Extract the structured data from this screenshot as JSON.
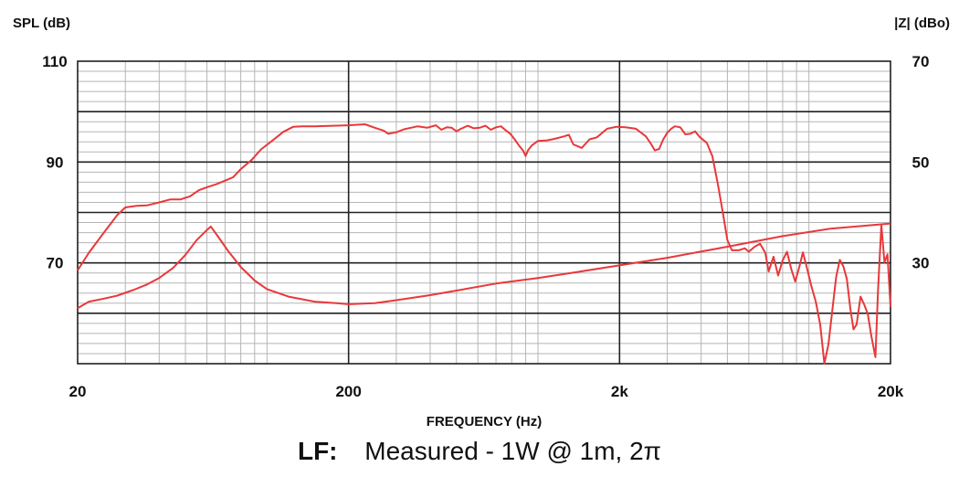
{
  "chart_data": {
    "type": "line",
    "xscale": "log",
    "xlim": [
      20,
      20000
    ],
    "ylim_left": [
      50,
      110
    ],
    "ylim_right": [
      10,
      70
    ],
    "ylabel_left": "SPL (dB)",
    "ylabel_right": "|Z| (dBo)",
    "xlabel": "FREQUENCY (Hz)",
    "caption_label": "LF:",
    "caption_text": "Measured - 1W @ 1m, 2π",
    "grid": true,
    "line_color": "#e8383b",
    "x_ticks": [
      {
        "value": 20,
        "label": "20"
      },
      {
        "value": 200,
        "label": "200"
      },
      {
        "value": 2000,
        "label": "2k"
      },
      {
        "value": 20000,
        "label": "20k"
      }
    ],
    "y_ticks_left": [
      {
        "value": 110,
        "label": "110"
      },
      {
        "value": 90,
        "label": "90"
      },
      {
        "value": 70,
        "label": "70"
      }
    ],
    "y_ticks_right": [
      {
        "value": 70,
        "label": "70"
      },
      {
        "value": 50,
        "label": "50"
      },
      {
        "value": 30,
        "label": "30"
      }
    ],
    "series": [
      {
        "axis": "left",
        "points": [
          [
            20,
            68.5
          ],
          [
            22,
            72
          ],
          [
            25,
            76
          ],
          [
            28,
            79.5
          ],
          [
            30,
            81
          ],
          [
            33,
            81.3
          ],
          [
            36,
            81.4
          ],
          [
            40,
            82
          ],
          [
            44,
            82.6
          ],
          [
            48,
            82.6
          ],
          [
            52,
            83.2
          ],
          [
            56,
            84.4
          ],
          [
            60,
            85
          ],
          [
            65,
            85.6
          ],
          [
            70,
            86.3
          ],
          [
            75,
            87
          ],
          [
            80,
            88.6
          ],
          [
            88,
            90.5
          ],
          [
            95,
            92.5
          ],
          [
            105,
            94.3
          ],
          [
            115,
            96
          ],
          [
            125,
            97
          ],
          [
            135,
            97.1
          ],
          [
            150,
            97.1
          ],
          [
            175,
            97.2
          ],
          [
            200,
            97.3
          ],
          [
            215,
            97.4
          ],
          [
            230,
            97.5
          ],
          [
            250,
            96.8
          ],
          [
            270,
            96.2
          ],
          [
            280,
            95.6
          ],
          [
            300,
            95.9
          ],
          [
            320,
            96.5
          ],
          [
            340,
            96.8
          ],
          [
            360,
            97.1
          ],
          [
            390,
            96.8
          ],
          [
            420,
            97.3
          ],
          [
            440,
            96.4
          ],
          [
            460,
            96.9
          ],
          [
            480,
            96.8
          ],
          [
            500,
            96.1
          ],
          [
            520,
            96.6
          ],
          [
            550,
            97.2
          ],
          [
            580,
            96.7
          ],
          [
            610,
            96.8
          ],
          [
            640,
            97.2
          ],
          [
            670,
            96.4
          ],
          [
            700,
            96.9
          ],
          [
            730,
            97.1
          ],
          [
            760,
            96.3
          ],
          [
            790,
            95.6
          ],
          [
            820,
            94.5
          ],
          [
            850,
            93.3
          ],
          [
            880,
            92.3
          ],
          [
            900,
            91.2
          ],
          [
            920,
            92.4
          ],
          [
            950,
            93.3
          ],
          [
            1000,
            94.2
          ],
          [
            1080,
            94.3
          ],
          [
            1150,
            94.6
          ],
          [
            1250,
            95.1
          ],
          [
            1300,
            95.4
          ],
          [
            1350,
            93.5
          ],
          [
            1450,
            92.8
          ],
          [
            1550,
            94.5
          ],
          [
            1650,
            94.9
          ],
          [
            1800,
            96.6
          ],
          [
            1950,
            97
          ],
          [
            2100,
            96.9
          ],
          [
            2300,
            96.6
          ],
          [
            2500,
            95.1
          ],
          [
            2600,
            93.8
          ],
          [
            2700,
            92.3
          ],
          [
            2800,
            92.6
          ],
          [
            2900,
            94.5
          ],
          [
            3000,
            95.8
          ],
          [
            3100,
            96.6
          ],
          [
            3200,
            97.1
          ],
          [
            3350,
            96.9
          ],
          [
            3500,
            95.5
          ],
          [
            3650,
            95.6
          ],
          [
            3800,
            96.1
          ],
          [
            3950,
            95
          ],
          [
            4200,
            93.8
          ],
          [
            4400,
            91.2
          ],
          [
            4600,
            86
          ],
          [
            4800,
            80.3
          ],
          [
            5000,
            74.5
          ],
          [
            5200,
            72.5
          ],
          [
            5500,
            72.5
          ],
          [
            5800,
            72.9
          ],
          [
            6000,
            72.2
          ],
          [
            6300,
            73.2
          ],
          [
            6600,
            73.8
          ],
          [
            6900,
            72
          ],
          [
            7100,
            68.3
          ],
          [
            7400,
            71.2
          ],
          [
            7700,
            67.5
          ],
          [
            8000,
            70.5
          ],
          [
            8300,
            72.2
          ],
          [
            8600,
            68.8
          ],
          [
            8900,
            66.3
          ],
          [
            9200,
            69.1
          ],
          [
            9500,
            72.1
          ],
          [
            9800,
            69.3
          ],
          [
            10200,
            65.5
          ],
          [
            10600,
            62.3
          ],
          [
            11000,
            57.8
          ],
          [
            11400,
            49.8
          ],
          [
            11800,
            53.8
          ],
          [
            12200,
            60.6
          ],
          [
            12600,
            67.2
          ],
          [
            13000,
            70.6
          ],
          [
            13400,
            69.3
          ],
          [
            13800,
            66.8
          ],
          [
            14200,
            61.1
          ],
          [
            14600,
            56.8
          ],
          [
            15000,
            57.8
          ],
          [
            15500,
            63.3
          ],
          [
            16000,
            61.7
          ],
          [
            16500,
            59.8
          ],
          [
            17000,
            55.4
          ],
          [
            17600,
            51.3
          ],
          [
            18000,
            64.8
          ],
          [
            18500,
            77.5
          ],
          [
            19000,
            70.1
          ],
          [
            19500,
            71.7
          ],
          [
            20000,
            61.3
          ]
        ]
      },
      {
        "axis": "right",
        "points": [
          [
            20,
            21
          ],
          [
            22,
            22.3
          ],
          [
            25,
            22.9
          ],
          [
            28,
            23.5
          ],
          [
            32,
            24.6
          ],
          [
            36,
            25.7
          ],
          [
            40,
            27
          ],
          [
            45,
            29
          ],
          [
            50,
            31.6
          ],
          [
            55,
            34.5
          ],
          [
            60,
            36.5
          ],
          [
            62,
            37.2
          ],
          [
            66,
            35.2
          ],
          [
            72,
            32.3
          ],
          [
            80,
            29.2
          ],
          [
            90,
            26.5
          ],
          [
            100,
            24.8
          ],
          [
            120,
            23.3
          ],
          [
            150,
            22.3
          ],
          [
            180,
            22
          ],
          [
            200,
            21.8
          ],
          [
            250,
            22
          ],
          [
            300,
            22.6
          ],
          [
            400,
            23.6
          ],
          [
            500,
            24.5
          ],
          [
            700,
            25.9
          ],
          [
            1000,
            27
          ],
          [
            1400,
            28.2
          ],
          [
            2000,
            29.5
          ],
          [
            3000,
            31
          ],
          [
            5000,
            33.2
          ],
          [
            8000,
            35.3
          ],
          [
            12000,
            36.8
          ],
          [
            20000,
            37.8
          ]
        ]
      }
    ]
  }
}
